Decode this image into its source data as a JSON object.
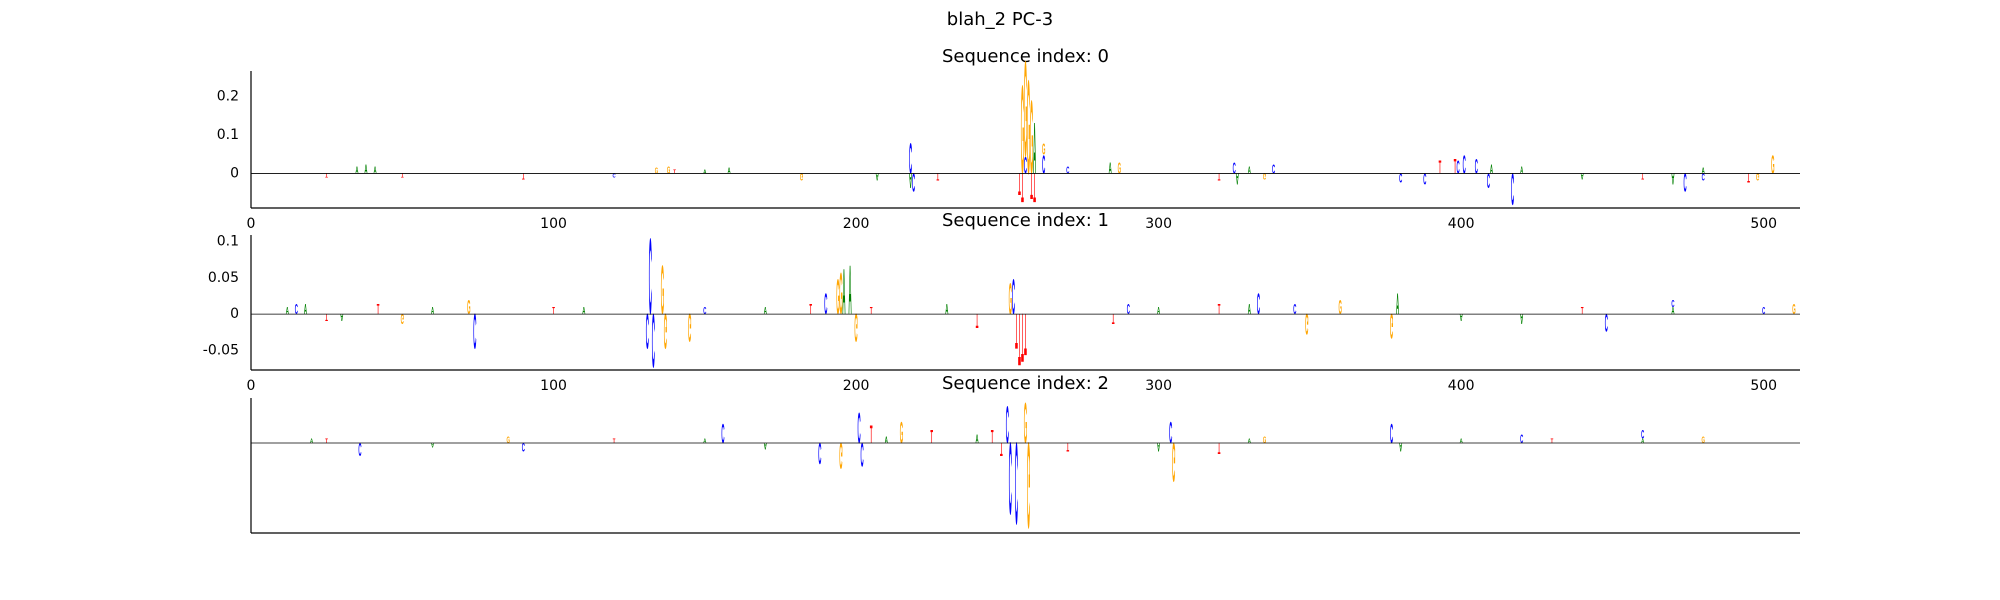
{
  "suptitle": "blah_2 PC-3",
  "chart_data": [
    {
      "type": "logo",
      "title": "Sequence index: 0",
      "xlim": [
        0,
        512
      ],
      "xticks": [
        0,
        100,
        200,
        300,
        400,
        500
      ],
      "ylim": [
        -0.09,
        0.267
      ],
      "yticks": [
        0.0,
        0.1,
        0.2
      ],
      "series": [
        {
          "name": "A",
          "color": "#008000",
          "x": [
            35,
            38,
            41,
            150,
            158,
            207,
            218,
            259,
            284,
            326,
            330,
            410,
            420,
            440,
            470,
            480
          ],
          "values": [
            0.02,
            0.025,
            0.02,
            0.01,
            0.015,
            -0.02,
            -0.04,
            0.14,
            0.03,
            -0.03,
            0.02,
            0.025,
            0.02,
            -0.015,
            -0.03,
            0.015
          ]
        },
        {
          "name": "C",
          "color": "#0000ff",
          "x": [
            120,
            218,
            219,
            256,
            262,
            270,
            325,
            338,
            380,
            388,
            399,
            401,
            405,
            409,
            417,
            474,
            480
          ],
          "values": [
            -0.01,
            0.083,
            -0.05,
            0.045,
            0.05,
            0.02,
            0.03,
            0.025,
            -0.025,
            -0.03,
            0.035,
            0.05,
            0.04,
            -0.04,
            -0.087,
            -0.05,
            -0.02
          ]
        },
        {
          "name": "G",
          "color": "#ffa500",
          "x": [
            134,
            138,
            182,
            255,
            256,
            257,
            258,
            262,
            287,
            335,
            498,
            503
          ],
          "values": [
            0.015,
            0.02,
            -0.02,
            0.24,
            0.26,
            0.255,
            0.2,
            0.03,
            0.03,
            -0.015,
            -0.02,
            0.05
          ]
        },
        {
          "name": "T",
          "color": "#ff0000",
          "x": [
            25,
            50,
            90,
            140,
            227,
            254,
            255,
            258,
            259,
            320,
            393,
            398,
            460,
            495
          ],
          "values": [
            -0.01,
            -0.01,
            -0.015,
            0.01,
            -0.02,
            -0.06,
            -0.08,
            -0.07,
            -0.08,
            -0.02,
            0.035,
            0.04,
            -0.015,
            -0.025
          ]
        }
      ]
    },
    {
      "type": "logo",
      "title": "Sequence index: 1",
      "xlim": [
        0,
        512
      ],
      "xticks": [
        0,
        100,
        200,
        300,
        400,
        500
      ],
      "ylim": [
        -0.077,
        0.109
      ],
      "yticks": [
        -0.05,
        0.0,
        0.05,
        0.1
      ],
      "series": [
        {
          "name": "A",
          "color": "#008000",
          "x": [
            12,
            18,
            30,
            60,
            110,
            170,
            196,
            198,
            230,
            300,
            330,
            379,
            400,
            420,
            470
          ],
          "values": [
            0.01,
            0.015,
            -0.01,
            0.01,
            0.01,
            0.01,
            0.065,
            0.07,
            0.015,
            0.01,
            0.015,
            0.03,
            -0.01,
            -0.015,
            0.01
          ]
        },
        {
          "name": "C",
          "color": "#0000ff",
          "x": [
            15,
            74,
            131,
            132,
            133,
            150,
            190,
            252,
            290,
            333,
            345,
            448,
            470,
            500
          ],
          "values": [
            0.015,
            -0.05,
            -0.05,
            0.109,
            -0.077,
            0.01,
            0.03,
            0.05,
            0.015,
            0.03,
            0.015,
            -0.025,
            0.01,
            0.01
          ]
        },
        {
          "name": "G",
          "color": "#ffa500",
          "x": [
            50,
            72,
            136,
            137,
            145,
            194,
            195,
            200,
            251,
            349,
            360,
            377,
            510
          ],
          "values": [
            -0.015,
            0.02,
            0.07,
            -0.05,
            -0.04,
            0.05,
            0.06,
            -0.04,
            0.045,
            -0.03,
            0.02,
            -0.035,
            0.015
          ]
        },
        {
          "name": "T",
          "color": "#ff0000",
          "x": [
            25,
            42,
            100,
            185,
            205,
            240,
            253,
            254,
            255,
            256,
            285,
            320,
            440
          ],
          "values": [
            -0.01,
            0.015,
            0.01,
            0.015,
            0.01,
            -0.02,
            -0.05,
            -0.075,
            -0.07,
            -0.06,
            -0.015,
            0.015,
            0.01
          ]
        }
      ]
    },
    {
      "type": "logo",
      "title": "Sequence index: 2",
      "xlim": [
        0,
        512
      ],
      "ylim": [
        -0.2,
        0.1
      ],
      "series": [
        {
          "name": "A",
          "color": "#008000",
          "x": [
            20,
            60,
            150,
            170,
            210,
            240,
            300,
            330,
            380,
            400,
            460
          ],
          "values": [
            0.01,
            -0.01,
            0.01,
            -0.015,
            0.015,
            0.02,
            -0.02,
            0.01,
            -0.02,
            0.01,
            0.01
          ]
        },
        {
          "name": "C",
          "color": "#0000ff",
          "x": [
            36,
            90,
            156,
            188,
            201,
            202,
            250,
            251,
            253,
            304,
            377,
            420,
            460
          ],
          "values": [
            -0.03,
            -0.02,
            0.045,
            -0.05,
            0.07,
            -0.055,
            0.085,
            -0.167,
            -0.19,
            0.05,
            0.045,
            0.02,
            0.02
          ]
        },
        {
          "name": "G",
          "color": "#ffa500",
          "x": [
            85,
            195,
            215,
            256,
            257,
            305,
            335,
            480
          ],
          "values": [
            0.015,
            -0.06,
            0.05,
            0.093,
            -0.198,
            -0.09,
            0.015,
            0.015
          ]
        },
        {
          "name": "T",
          "color": "#ff0000",
          "x": [
            25,
            120,
            205,
            225,
            245,
            248,
            270,
            320,
            430
          ],
          "values": [
            0.01,
            0.01,
            0.04,
            0.03,
            0.03,
            -0.03,
            -0.02,
            -0.025,
            0.01
          ]
        }
      ]
    }
  ]
}
